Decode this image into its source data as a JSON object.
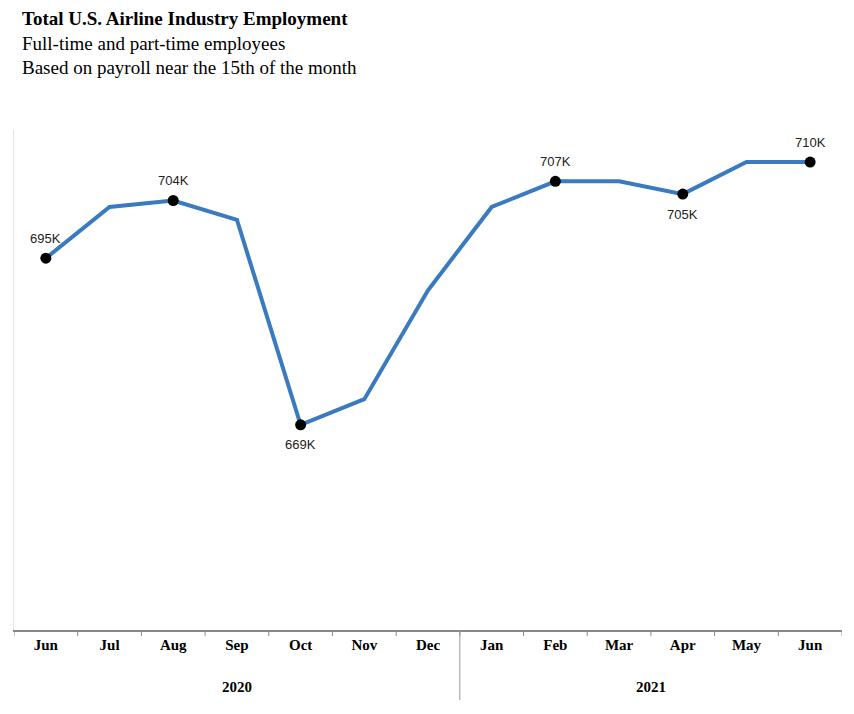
{
  "chart_data": {
    "type": "line",
    "title": "Total U.S. Airline Industry Employment",
    "subtitle": [
      "Full-time and part-time employees",
      "Based on payroll near the 15th of the month"
    ],
    "categories": [
      "Jun",
      "Jul",
      "Aug",
      "Sep",
      "Oct",
      "Nov",
      "Dec",
      "Jan",
      "Feb",
      "Mar",
      "Apr",
      "May",
      "Jun"
    ],
    "x_groups": [
      {
        "label": "2020",
        "count": 7
      },
      {
        "label": "2021",
        "count": 6
      }
    ],
    "values": [
      695,
      703,
      704,
      701,
      669,
      673,
      690,
      703,
      707,
      707,
      705,
      710,
      710
    ],
    "value_labels": [
      "695K",
      null,
      "704K",
      null,
      "669K",
      null,
      null,
      null,
      "707K",
      null,
      "705K",
      null,
      "710K"
    ],
    "color": "#3a7abf",
    "marker": "circle",
    "data_labels": true,
    "tick_labels": "x",
    "grid": false,
    "ylim": [
      637,
      715
    ]
  }
}
